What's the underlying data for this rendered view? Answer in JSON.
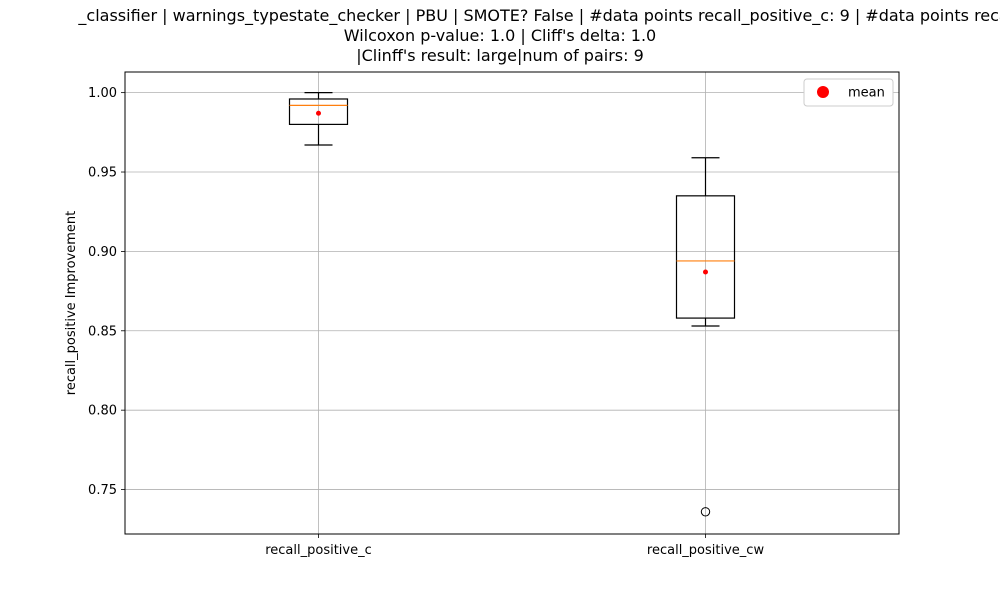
{
  "chart_data": {
    "type": "box",
    "title_lines": [
      "_classifier | warnings_typestate_checker | PBU | SMOTE? False | #data points recall_positive_c: 9 | #data points recall_po",
      "Wilcoxon p-value: 1.0 | Cliff's delta: 1.0",
      "|Clinff's result: large|num of pairs: 9"
    ],
    "xlabel": "",
    "ylabel": "recall_positive Improvement",
    "ylim": [
      0.722,
      1.013
    ],
    "yticks": [
      0.75,
      0.8,
      0.85,
      0.9,
      0.95,
      1.0
    ],
    "ytick_labels": [
      "0.75",
      "0.80",
      "0.85",
      "0.90",
      "0.95",
      "1.00"
    ],
    "grid": true,
    "legend": {
      "placement": "top-right",
      "entries": [
        {
          "label": "mean",
          "color": "#ff0000"
        }
      ]
    },
    "colors": {
      "box": "#000000",
      "median": "#ff7f0e",
      "mean": "#ff0000",
      "grid": "#b0b0b0"
    },
    "series": [
      {
        "category": "recall_positive_c",
        "whisker_low": 0.967,
        "q1": 0.98,
        "median": 0.992,
        "q3": 0.996,
        "whisker_high": 1.0,
        "mean": 0.987,
        "outliers": []
      },
      {
        "category": "recall_positive_cw",
        "whisker_low": 0.853,
        "q1": 0.858,
        "median": 0.894,
        "q3": 0.935,
        "whisker_high": 0.959,
        "mean": 0.887,
        "outliers": [
          0.736
        ]
      }
    ]
  }
}
